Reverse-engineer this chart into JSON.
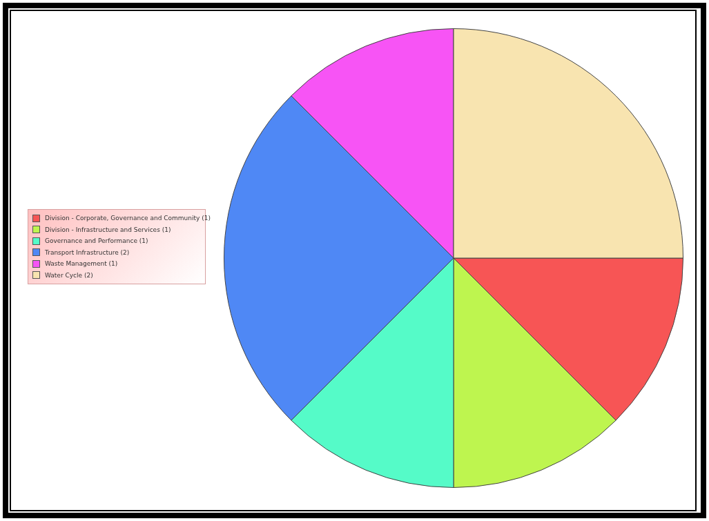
{
  "chart_data": {
    "type": "pie",
    "categories": [
      "Division - Corporate, Governance and Community (1)",
      "Division - Infrastructure and Services (1)",
      "Governance and Performance (1)",
      "Transport Infrastructure (2)",
      "Waste Management (1)",
      "Water Cycle (2)"
    ],
    "values": [
      1,
      1,
      1,
      2,
      1,
      2
    ],
    "colors": [
      "#f75555",
      "#bef54f",
      "#55fbc8",
      "#4f88f5",
      "#f754f5",
      "#f8e4b0"
    ],
    "legend": "left"
  }
}
